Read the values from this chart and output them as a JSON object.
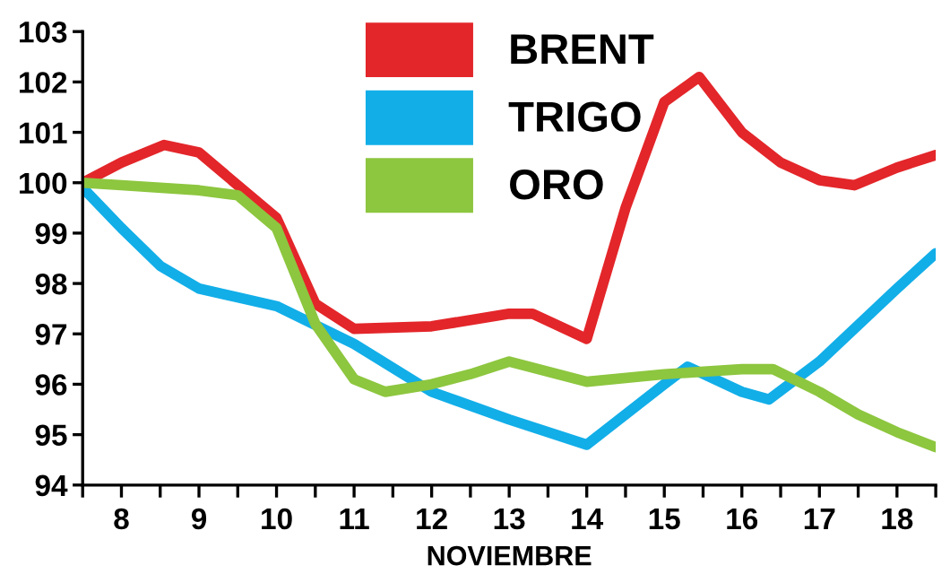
{
  "chart_data": {
    "type": "line",
    "xlabel": "NOVIEMBRE",
    "xlim": [
      7.5,
      18.5
    ],
    "ylim": [
      94,
      103
    ],
    "xticks": [
      {
        "value": 7.5,
        "label": null
      },
      8,
      {
        "value": 8.5,
        "label": null
      },
      9,
      {
        "value": 9.5,
        "label": null
      },
      10,
      {
        "value": 10.5,
        "label": null
      },
      11,
      {
        "value": 11.5,
        "label": null
      },
      12,
      {
        "value": 12.5,
        "label": null
      },
      13,
      {
        "value": 13.5,
        "label": null
      },
      14,
      {
        "value": 14.5,
        "label": null
      },
      15,
      {
        "value": 15.5,
        "label": null
      },
      16,
      {
        "value": 16.5,
        "label": null
      },
      17,
      {
        "value": 17.5,
        "label": null
      },
      18,
      {
        "value": 18.5,
        "label": null
      }
    ],
    "yticks": [
      94,
      95,
      96,
      97,
      98,
      99,
      100,
      101,
      102,
      103
    ],
    "grid": false,
    "legend": "top",
    "marker": "none",
    "line_style": "solid",
    "series": [
      {
        "name": "BRENT",
        "color": "#e3262a",
        "x": [
          7.5,
          8.0,
          8.55,
          9.0,
          10.0,
          10.5,
          11.0,
          12.0,
          13.0,
          13.3,
          14.0,
          14.5,
          15.0,
          15.45,
          16.0,
          16.5,
          17.0,
          17.45,
          18.0,
          18.5
        ],
        "values": [
          100.0,
          100.4,
          100.75,
          100.6,
          99.3,
          97.6,
          97.1,
          97.15,
          97.4,
          97.4,
          96.9,
          99.5,
          101.6,
          102.1,
          101.0,
          100.4,
          100.05,
          99.95,
          100.3,
          100.55
        ]
      },
      {
        "name": "TRIGO",
        "color": "#12aee8",
        "x": [
          7.5,
          8.0,
          8.5,
          9.0,
          10.0,
          11.0,
          12.0,
          13.0,
          14.0,
          15.0,
          15.3,
          16.0,
          16.35,
          17.0,
          18.0,
          18.5
        ],
        "values": [
          99.9,
          99.1,
          98.35,
          97.9,
          97.55,
          96.8,
          95.85,
          95.3,
          94.8,
          96.0,
          96.35,
          95.85,
          95.7,
          96.45,
          97.9,
          98.6
        ]
      },
      {
        "name": "ORO",
        "color": "#8dc63f",
        "x": [
          7.5,
          8.0,
          9.0,
          9.5,
          10.0,
          10.5,
          11.0,
          11.4,
          12.0,
          12.5,
          13.0,
          14.0,
          15.0,
          16.0,
          16.4,
          17.0,
          17.5,
          18.0,
          18.5
        ],
        "values": [
          100.0,
          99.95,
          99.85,
          99.75,
          99.1,
          97.2,
          96.1,
          95.85,
          96.0,
          96.2,
          96.45,
          96.05,
          96.2,
          96.3,
          96.3,
          95.85,
          95.4,
          95.05,
          94.75
        ]
      }
    ]
  }
}
